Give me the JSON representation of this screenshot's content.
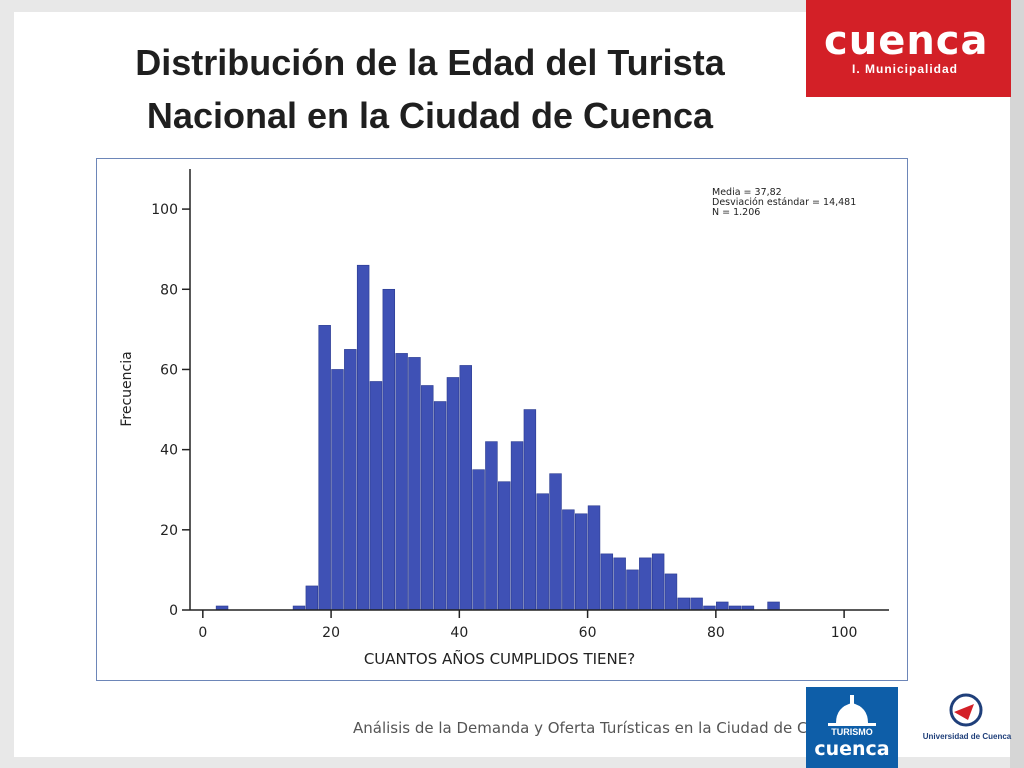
{
  "slide": {
    "title_line1": "Distribución de la Edad del Turista",
    "title_line2": "Nacional en la Ciudad de Cuenca",
    "footer": "Análisis de la Demanda y Oferta Turísticas en la Ciudad de Cuenca"
  },
  "logos": {
    "cuenca_word": "cuenca",
    "cuenca_sub": "I. Municipalidad",
    "turismo_line": "TURISMO",
    "turismo_word": "cuenca",
    "university": "Universidad de Cuenca"
  },
  "colors": {
    "bar": "#3f51b5",
    "bar_stroke": "#2a3a8f",
    "brand_red": "#d32027",
    "brand_blue": "#0e5ea8"
  },
  "chart_data": {
    "type": "bar",
    "subtype": "histogram",
    "xlabel": "CUANTOS AÑOS CUMPLIDOS TIENE?",
    "ylabel": "Frecuencia",
    "xlim": [
      -2,
      107
    ],
    "ylim": [
      0,
      110
    ],
    "x_ticks": [
      0,
      20,
      40,
      60,
      80,
      100
    ],
    "y_ticks": [
      0,
      20,
      40,
      60,
      80,
      100
    ],
    "bin_width": 2,
    "stats": [
      "Media = 37,82",
      "Desviación estándar = 14,481",
      "N = 1.206"
    ],
    "bins": [
      {
        "x": 2,
        "count": 1
      },
      {
        "x": 14,
        "count": 1
      },
      {
        "x": 16,
        "count": 6
      },
      {
        "x": 18,
        "count": 71
      },
      {
        "x": 20,
        "count": 60
      },
      {
        "x": 22,
        "count": 65
      },
      {
        "x": 24,
        "count": 86
      },
      {
        "x": 26,
        "count": 57
      },
      {
        "x": 28,
        "count": 80
      },
      {
        "x": 30,
        "count": 64
      },
      {
        "x": 32,
        "count": 63
      },
      {
        "x": 34,
        "count": 56
      },
      {
        "x": 36,
        "count": 52
      },
      {
        "x": 38,
        "count": 58
      },
      {
        "x": 40,
        "count": 61
      },
      {
        "x": 42,
        "count": 35
      },
      {
        "x": 44,
        "count": 42
      },
      {
        "x": 46,
        "count": 32
      },
      {
        "x": 48,
        "count": 42
      },
      {
        "x": 50,
        "count": 50
      },
      {
        "x": 52,
        "count": 29
      },
      {
        "x": 54,
        "count": 34
      },
      {
        "x": 56,
        "count": 25
      },
      {
        "x": 58,
        "count": 24
      },
      {
        "x": 60,
        "count": 26
      },
      {
        "x": 62,
        "count": 14
      },
      {
        "x": 64,
        "count": 13
      },
      {
        "x": 66,
        "count": 10
      },
      {
        "x": 68,
        "count": 13
      },
      {
        "x": 70,
        "count": 14
      },
      {
        "x": 72,
        "count": 9
      },
      {
        "x": 74,
        "count": 3
      },
      {
        "x": 76,
        "count": 3
      },
      {
        "x": 78,
        "count": 1
      },
      {
        "x": 80,
        "count": 2
      },
      {
        "x": 82,
        "count": 1
      },
      {
        "x": 84,
        "count": 1
      },
      {
        "x": 88,
        "count": 2
      }
    ]
  }
}
